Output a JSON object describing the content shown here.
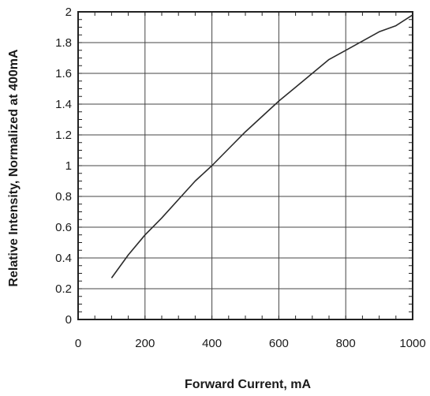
{
  "chart_data": {
    "type": "line",
    "title": "",
    "xlabel": "Forward Current, mA",
    "ylabel": "Relative Intensity, Normalized at 400mA",
    "xlim": [
      0,
      1000
    ],
    "ylim": [
      0,
      2
    ],
    "x_ticks": [
      "0",
      "200",
      "400",
      "600",
      "800",
      "1000"
    ],
    "y_ticks": [
      "0",
      "0.2",
      "0.4",
      "0.6",
      "0.8",
      "1",
      "1.2",
      "1.4",
      "1.6",
      "1.8",
      "2"
    ],
    "grid": true,
    "series": [
      {
        "x": [
          100,
          150,
          200,
          250,
          300,
          350,
          400,
          450,
          500,
          550,
          600,
          650,
          700,
          750,
          800,
          850,
          900,
          950,
          1000
        ],
        "y": [
          0.27,
          0.42,
          0.55,
          0.66,
          0.78,
          0.9,
          1.0,
          1.11,
          1.22,
          1.32,
          1.42,
          1.51,
          1.6,
          1.69,
          1.75,
          1.81,
          1.87,
          1.91,
          1.98
        ]
      }
    ],
    "colors": {
      "line": "#2b2b2b",
      "grid": "#444444",
      "axis": "#222222"
    }
  }
}
